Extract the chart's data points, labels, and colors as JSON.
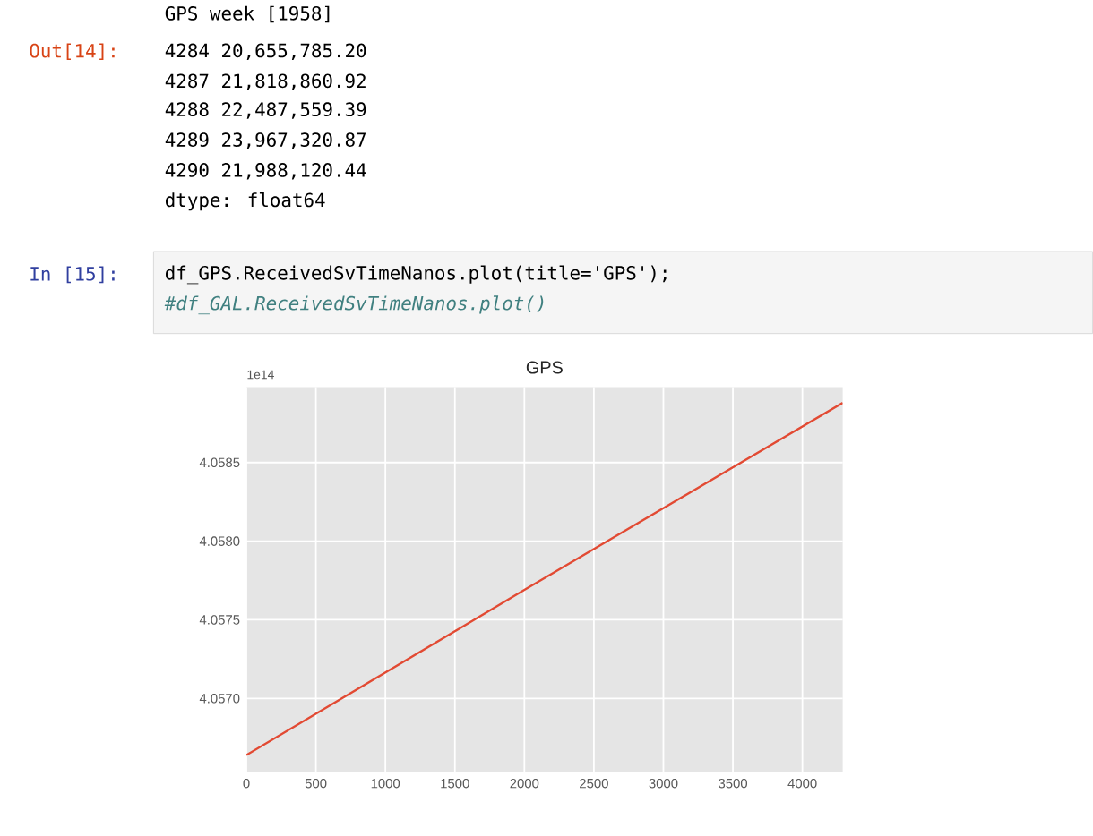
{
  "chart_data": {
    "type": "line",
    "title": "GPS",
    "x": [
      0,
      2000,
      4290
    ],
    "values": [
      4.05664,
      4.05769,
      4.05888
    ],
    "color": "#e24a33",
    "xlim": [
      0,
      4290
    ],
    "ylim": [
      4.05653,
      4.05898
    ],
    "xticks": [
      0,
      500,
      1000,
      1500,
      2000,
      2500,
      3000,
      3500,
      4000
    ],
    "yticks": [
      {
        "value": 4.057,
        "label": "4.0570"
      },
      4.0575,
      {
        "value": 4.058,
        "label": "4.0580"
      },
      4.0585
    ],
    "grid": true,
    "annotations": [
      "GPS week [1958]",
      "Out[14]:",
      "4284   20,655,785.20",
      "4287   21,818,860.92",
      "4288   22,487,559.39",
      "4289   23,967,320.87",
      "4290   21,988,120.44",
      "dtype: float64",
      "In [15]:",
      "df_GPS.ReceivedSvTimeNanos.plot(title='GPS');",
      "#df_GAL.ReceivedSvTimeNanos.plot()",
      "1e14"
    ]
  }
}
